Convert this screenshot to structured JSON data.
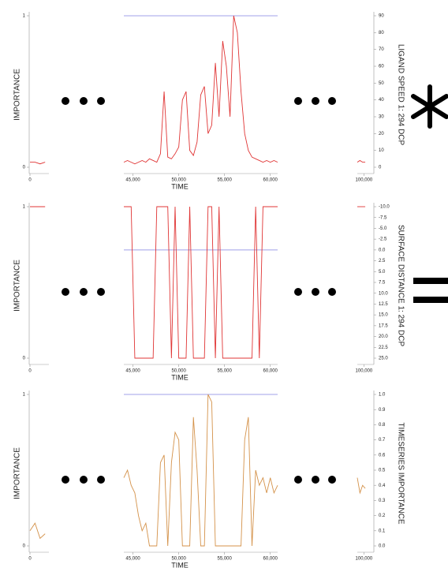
{
  "chart_data": [
    {
      "type": "line",
      "ylabel": "IMPORTANCE",
      "xlabel": "TIME",
      "y2label": "LIGAND SPEED 1: 294 DCP",
      "xlim_left": [
        0,
        1500
      ],
      "xlim": [
        44000,
        60800
      ],
      "xlim_right": [
        99000,
        101500
      ],
      "xticks": [
        0,
        {
          "value": 45000,
          "label": "45,000"
        },
        {
          "value": 50000,
          "label": "50,000"
        },
        {
          "value": 55000,
          "label": "55,000"
        },
        {
          "value": 60000,
          "label": "60,000"
        },
        {
          "value": 100000,
          "label": "100,000"
        }
      ],
      "ylim": [
        0,
        1
      ],
      "yticks": [
        0,
        1
      ],
      "y2lim": [
        0,
        90
      ],
      "y2ticks": [
        0,
        10,
        20,
        30,
        40,
        50,
        60,
        70,
        80,
        90
      ],
      "reference_line": {
        "value": 90,
        "color": "#8080e0"
      },
      "x": [
        0,
        400,
        800,
        1200,
        44000,
        44400,
        44800,
        45200,
        45600,
        46000,
        46400,
        46800,
        47200,
        47600,
        48000,
        48400,
        48800,
        49200,
        49600,
        50000,
        50400,
        50800,
        51200,
        51600,
        52000,
        52400,
        52800,
        53200,
        53600,
        54000,
        54400,
        54800,
        55200,
        55600,
        56000,
        56400,
        56800,
        57200,
        57600,
        58000,
        58400,
        58800,
        59200,
        59600,
        60000,
        60400,
        60800,
        99000,
        99400,
        99800,
        100200
      ],
      "series": [
        {
          "name": "LIGAND SPEED 1: 294 DCP",
          "color": "#e03535",
          "axis": "y2",
          "values": [
            3,
            3,
            2,
            3,
            3,
            4,
            3,
            2,
            3,
            4,
            3,
            5,
            4,
            3,
            8,
            45,
            6,
            5,
            8,
            12,
            40,
            45,
            10,
            7,
            15,
            43,
            48,
            20,
            25,
            62,
            30,
            75,
            60,
            30,
            90,
            80,
            45,
            20,
            10,
            6,
            5,
            4,
            3,
            4,
            3,
            4,
            3,
            3,
            4,
            3,
            3
          ]
        }
      ]
    },
    {
      "type": "line",
      "ylabel": "IMPORTANCE",
      "xlabel": "TIME",
      "y2label": "SURFACE DISTANCE 1: 294 DCP",
      "xlim_left": [
        0,
        1500
      ],
      "xlim": [
        44000,
        60800
      ],
      "xlim_right": [
        99000,
        101500
      ],
      "xticks": [
        0,
        {
          "value": 45000,
          "label": "45,000"
        },
        {
          "value": 50000,
          "label": "50,000"
        },
        {
          "value": 55000,
          "label": "55,000"
        },
        {
          "value": 60000,
          "label": "60,000"
        },
        {
          "value": 100000,
          "label": "100,000"
        }
      ],
      "ylim": [
        0,
        1
      ],
      "yticks": [
        0,
        1
      ],
      "y2lim": [
        25,
        -10
      ],
      "y2ticks": [
        {
          "value": -10,
          "label": "-10.0"
        },
        -7.5,
        {
          "value": -5,
          "label": "-5.0"
        },
        -2.5,
        {
          "value": 0,
          "label": "0.0"
        },
        2.5,
        {
          "value": 5,
          "label": "5.0"
        },
        7.5,
        {
          "value": 10,
          "label": "10.0"
        },
        12.5,
        {
          "value": 15,
          "label": "15.0"
        },
        17.5,
        {
          "value": 20,
          "label": "20.0"
        },
        22.5,
        {
          "value": 25,
          "label": "25.0"
        }
      ],
      "reference_line": {
        "value": 0,
        "color": "#8080e0"
      },
      "x": [
        0,
        400,
        800,
        1200,
        44000,
        44400,
        44800,
        45200,
        45600,
        46000,
        46400,
        46800,
        47200,
        47600,
        48000,
        48400,
        48800,
        49200,
        49600,
        50000,
        50400,
        50800,
        51200,
        51600,
        52000,
        52400,
        52800,
        53200,
        53600,
        54000,
        54400,
        54800,
        55200,
        55600,
        56000,
        56400,
        56800,
        57200,
        57600,
        58000,
        58400,
        58800,
        59200,
        59600,
        60000,
        60400,
        60800,
        99000,
        99400,
        99800,
        100200
      ],
      "series": [
        {
          "name": "SURFACE DISTANCE 1: 294 DCP",
          "color": "#e03535",
          "values": [
            1,
            1,
            1,
            1,
            1,
            1,
            1,
            0,
            0,
            0,
            0,
            0,
            0,
            1,
            1,
            1,
            1,
            0,
            1,
            0,
            0,
            0,
            1,
            0,
            0,
            0,
            0,
            1,
            1,
            0,
            1,
            0,
            0,
            0,
            0,
            0,
            0,
            0,
            0,
            0,
            1,
            0,
            1,
            1,
            1,
            1,
            1,
            1,
            1,
            1,
            1
          ]
        }
      ]
    },
    {
      "type": "line",
      "ylabel": "IMPORTANCE",
      "xlabel": "TIME",
      "y2label": "TIMESERIES IMPORTANCE",
      "xlim_left": [
        0,
        1500
      ],
      "xlim": [
        44000,
        60800
      ],
      "xlim_right": [
        99000,
        101500
      ],
      "xticks": [
        0,
        {
          "value": 45000,
          "label": "45,000"
        },
        {
          "value": 50000,
          "label": "50,000"
        },
        {
          "value": 55000,
          "label": "55,000"
        },
        {
          "value": 60000,
          "label": "60,000"
        },
        {
          "value": 100000,
          "label": "100,000"
        }
      ],
      "ylim": [
        0,
        1
      ],
      "yticks": [
        0,
        1
      ],
      "y2lim": [
        0,
        1
      ],
      "y2ticks": [
        {
          "value": 0,
          "label": "0.0"
        },
        0.1,
        0.2,
        0.3,
        0.4,
        0.5,
        0.6,
        0.7,
        0.8,
        0.9,
        {
          "value": 1,
          "label": "1.0"
        }
      ],
      "reference_line": {
        "value": 1,
        "color": "#8080e0"
      },
      "x": [
        0,
        400,
        800,
        1200,
        44000,
        44400,
        44800,
        45200,
        45600,
        46000,
        46400,
        46800,
        47200,
        47600,
        48000,
        48400,
        48800,
        49200,
        49600,
        50000,
        50400,
        50800,
        51200,
        51600,
        52000,
        52400,
        52800,
        53200,
        53600,
        54000,
        54400,
        54800,
        55200,
        55600,
        56000,
        56400,
        56800,
        57200,
        57600,
        58000,
        58400,
        58800,
        59200,
        59600,
        60000,
        60400,
        60800,
        99000,
        99400,
        99800,
        100200
      ],
      "series": [
        {
          "name": "TIMESERIES IMPORTANCE",
          "color": "#d4924a",
          "values": [
            0.1,
            0.15,
            0.05,
            0.08,
            0.45,
            0.5,
            0.4,
            0.35,
            0.2,
            0.1,
            0.15,
            0,
            0,
            0,
            0.55,
            0.6,
            0,
            0.55,
            0.75,
            0.7,
            0,
            0,
            0,
            0.85,
            0.5,
            0,
            0,
            1,
            0.95,
            0,
            0,
            0,
            0,
            0,
            0,
            0,
            0,
            0.7,
            0.85,
            0,
            0.5,
            0.4,
            0.45,
            0.35,
            0.45,
            0.35,
            0.4,
            0.45,
            0.35,
            0.4,
            0.38
          ]
        }
      ]
    }
  ]
}
